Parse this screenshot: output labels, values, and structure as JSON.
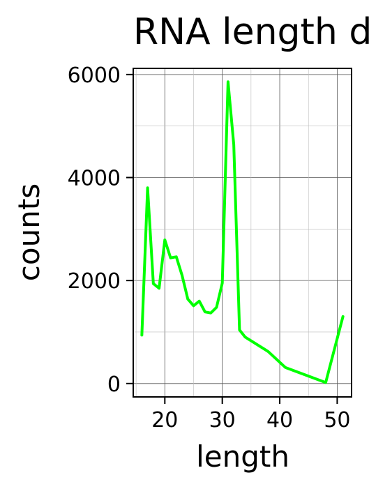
{
  "chart_data": {
    "type": "line",
    "title": "RNA length d",
    "xlabel": "length",
    "ylabel": "counts",
    "xlim": [
      14.5,
      52.5
    ],
    "ylim": [
      -260,
      6120
    ],
    "x_ticks": [
      20,
      30,
      40,
      50
    ],
    "y_ticks": [
      0,
      2000,
      4000,
      6000
    ],
    "x_tick_labels": [
      "20",
      "30",
      "40",
      "50"
    ],
    "y_tick_labels": [
      "0",
      "2000",
      "4000",
      "6000"
    ],
    "grid": true,
    "series": [
      {
        "color": "#00ff00",
        "x": [
          16,
          17,
          18,
          19,
          20,
          21,
          22,
          23,
          24,
          25,
          26,
          27,
          28,
          29,
          30,
          31,
          32,
          33,
          34,
          38,
          41,
          48,
          51
        ],
        "y": [
          940,
          3800,
          1940,
          1850,
          2790,
          2440,
          2460,
          2100,
          1640,
          1510,
          1600,
          1390,
          1370,
          1480,
          1950,
          5860,
          4640,
          1040,
          900,
          620,
          310,
          20,
          1300
        ]
      }
    ]
  }
}
